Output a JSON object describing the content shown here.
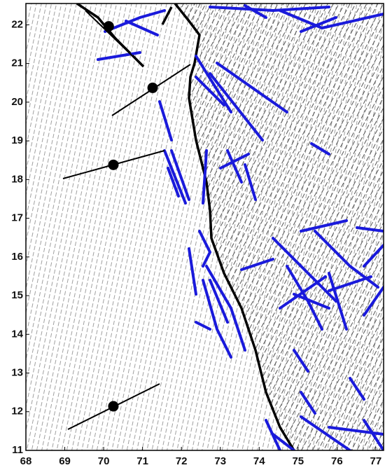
{
  "chart_data": {
    "type": "scatter",
    "x": [
      70.13,
      71.26,
      70.25,
      70.25
    ],
    "y": [
      21.96,
      20.37,
      18.38,
      12.14
    ],
    "color": "#000000",
    "xlim": [
      68,
      77.2
    ],
    "ylim": [
      11,
      22.55
    ],
    "xticks": [
      68,
      69,
      70,
      71,
      72,
      73,
      74,
      75,
      76,
      77
    ],
    "yticks": [
      11,
      12,
      13,
      14,
      15,
      16,
      17,
      18,
      19,
      20,
      21,
      22
    ]
  }
}
